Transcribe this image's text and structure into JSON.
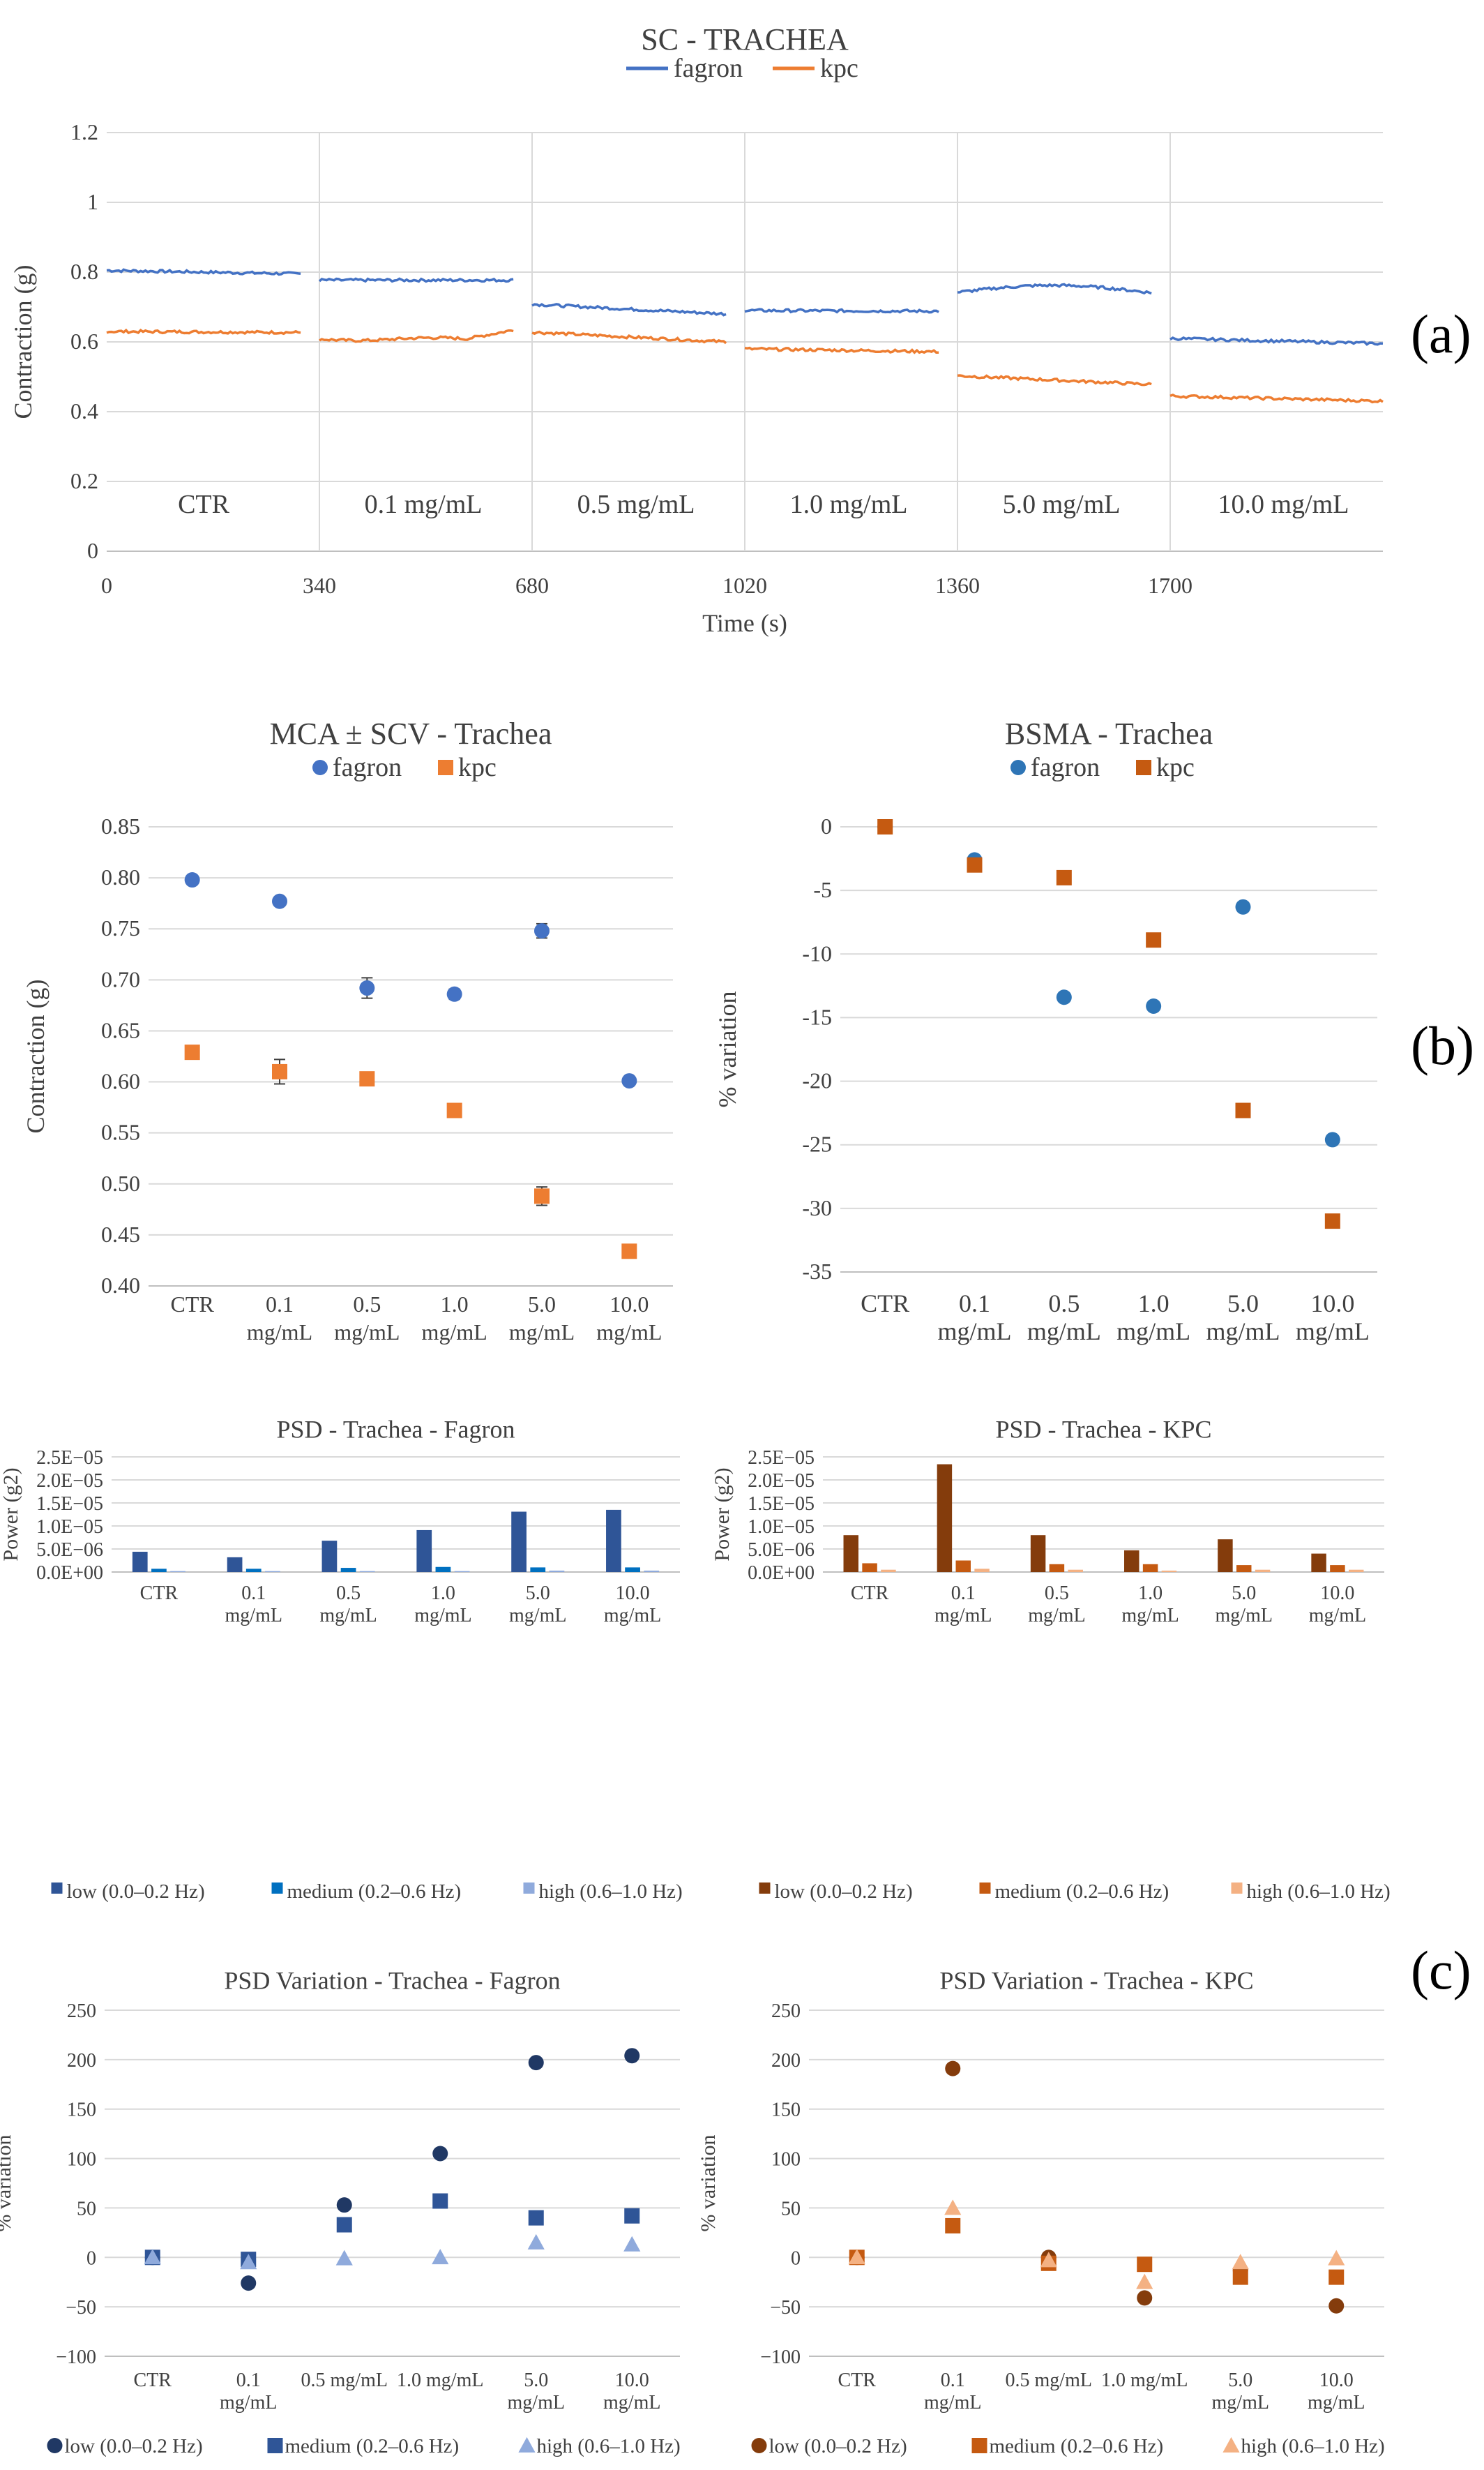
{
  "panel_labels": [
    "(a)",
    "(b)",
    "(c)"
  ],
  "chart_data": [
    {
      "id": "sc",
      "type": "line",
      "title": "SC - TRACHEA",
      "xlabel": "Time (s)",
      "ylabel": "Contraction (g)",
      "xlim": [
        0,
        2040
      ],
      "ylim": [
        0,
        1.2
      ],
      "yticks": [
        "0",
        "0.2",
        "0.4",
        "0.6",
        "0.8",
        "1",
        "1.2"
      ],
      "xticks": [
        "0",
        "340",
        "680",
        "1020",
        "1360",
        "1700"
      ],
      "legend_position": "top",
      "segments": [
        {
          "label": "CTR",
          "start": 0,
          "end": 310,
          "fagron": [
            0.805,
            0.795
          ],
          "kpc": [
            0.63,
            0.627
          ]
        },
        {
          "label": "0.1 mg/mL",
          "start": 340,
          "end": 650,
          "fagron": [
            0.777,
            0.777
          ],
          "kpc": [
            0.608,
            0.634
          ]
        },
        {
          "label": "0.5 mg/mL",
          "start": 680,
          "end": 990,
          "fagron": [
            0.708,
            0.68
          ],
          "kpc": [
            0.628,
            0.6
          ]
        },
        {
          "label": "1.0 mg/mL",
          "start": 1020,
          "end": 1330,
          "fagron": [
            0.69,
            0.688
          ],
          "kpc": [
            0.58,
            0.572
          ]
        },
        {
          "label": "5.0 mg/mL",
          "start": 1360,
          "end": 1670,
          "fagron": [
            0.74,
            0.755
          ],
          "kpc": [
            0.503,
            0.478
          ]
        },
        {
          "label": "10.0 mg/mL",
          "start": 1700,
          "end": 2040,
          "fagron": [
            0.61,
            0.595
          ],
          "kpc": [
            0.445,
            0.43
          ]
        }
      ],
      "series": [
        {
          "name": "fagron",
          "color": "#4472c4"
        },
        {
          "name": "kpc",
          "color": "#ed7d31"
        }
      ]
    },
    {
      "id": "mca",
      "type": "scatter",
      "title": "MCA ± SCV - Trachea",
      "ylabel": "Contraction (g)",
      "ylim": [
        0.4,
        0.85
      ],
      "yticks": [
        "0.40",
        "0.45",
        "0.50",
        "0.55",
        "0.60",
        "0.65",
        "0.70",
        "0.75",
        "0.80",
        "0.85"
      ],
      "categories": [
        [
          "CTR"
        ],
        [
          "0.1",
          "mg/mL"
        ],
        [
          "0.5",
          "mg/mL"
        ],
        [
          "1.0",
          "mg/mL"
        ],
        [
          "5.0",
          "mg/mL"
        ],
        [
          "10.0",
          "mg/mL"
        ]
      ],
      "legend_position": "top",
      "series": [
        {
          "name": "fagron",
          "color": "#4472c4",
          "marker": "circle",
          "values": [
            0.798,
            0.777,
            0.692,
            0.686,
            0.748,
            0.601
          ],
          "errors": [
            0.0,
            0.0,
            0.01,
            0.005,
            0.007,
            0.0
          ]
        },
        {
          "name": "kpc",
          "color": "#ed7d31",
          "marker": "square",
          "values": [
            0.629,
            0.61,
            0.603,
            0.572,
            0.488,
            0.434
          ],
          "errors": [
            0.0,
            0.012,
            0.0,
            0.0,
            0.009,
            0.0
          ]
        }
      ]
    },
    {
      "id": "bsma",
      "type": "scatter",
      "title": "BSMA - Trachea",
      "ylabel": "% variation",
      "ylim": [
        -35,
        0
      ],
      "yticks": [
        "0",
        "-5",
        "-10",
        "-15",
        "-20",
        "-25",
        "-30",
        "-35"
      ],
      "categories": [
        [
          "CTR"
        ],
        [
          "0.1",
          "mg/mL"
        ],
        [
          "0.5",
          "mg/mL"
        ],
        [
          "1.0",
          "mg/mL"
        ],
        [
          "5.0",
          "mg/mL"
        ],
        [
          "10.0",
          "mg/mL"
        ]
      ],
      "legend_position": "top",
      "series": [
        {
          "name": "fagron",
          "color": "#2e75b6",
          "marker": "circle",
          "values": [
            0,
            -2.6,
            -13.4,
            -14.1,
            -6.3,
            -24.6
          ]
        },
        {
          "name": "kpc",
          "color": "#c55a11",
          "marker": "square",
          "values": [
            0,
            -3.0,
            -4.0,
            -8.9,
            -22.3,
            -31.0
          ]
        }
      ]
    },
    {
      "id": "psdf",
      "type": "bar",
      "title": "PSD - Trachea - Fagron",
      "ylabel": "Power (g2)",
      "ylim": [
        0,
        2.5e-05
      ],
      "yticks": [
        "0.0E+00",
        "5.0E−06",
        "1.0E−05",
        "1.5E−05",
        "2.0E−05",
        "2.5E−05"
      ],
      "categories": [
        [
          "CTR"
        ],
        [
          "0.1",
          "mg/mL"
        ],
        [
          "0.5",
          "mg/mL"
        ],
        [
          "1.0",
          "mg/mL"
        ],
        [
          "5.0",
          "mg/mL"
        ],
        [
          "10.0",
          "mg/mL"
        ]
      ],
      "legend_position": "bottom",
      "series": [
        {
          "name": "low (0.0–0.2 Hz)",
          "color": "#2f5597",
          "values": [
            4.4e-06,
            3.2e-06,
            6.8e-06,
            9.1e-06,
            1.31e-05,
            1.35e-05
          ]
        },
        {
          "name": "medium (0.2–0.6 Hz)",
          "color": "#0070c0",
          "values": [
            7e-07,
            7e-07,
            9e-07,
            1.1e-06,
            1e-06,
            1e-06
          ]
        },
        {
          "name": "high (0.6–1.0 Hz)",
          "color": "#8faadc",
          "values": [
            2e-07,
            2e-07,
            2e-07,
            2e-07,
            3e-07,
            3e-07
          ]
        }
      ]
    },
    {
      "id": "psdk",
      "type": "bar",
      "title": "PSD - Trachea - KPC",
      "ylabel": "Power (g2)",
      "ylim": [
        0,
        2.5e-05
      ],
      "yticks": [
        "0.0E+00",
        "5.0E−06",
        "1.0E−05",
        "1.5E−05",
        "2.0E−05",
        "2.5E−05"
      ],
      "categories": [
        [
          "CTR"
        ],
        [
          "0.1",
          "mg/mL"
        ],
        [
          "0.5",
          "mg/mL"
        ],
        [
          "1.0",
          "mg/mL"
        ],
        [
          "5.0",
          "mg/mL"
        ],
        [
          "10.0",
          "mg/mL"
        ]
      ],
      "legend_position": "bottom",
      "series": [
        {
          "name": "low (0.0–0.2 Hz)",
          "color": "#843c0c",
          "values": [
            8e-06,
            2.34e-05,
            8e-06,
            4.7e-06,
            7.1e-06,
            4e-06
          ]
        },
        {
          "name": "medium (0.2–0.6 Hz)",
          "color": "#c55a11",
          "values": [
            1.9e-06,
            2.5e-06,
            1.7e-06,
            1.7e-06,
            1.5e-06,
            1.5e-06
          ]
        },
        {
          "name": "high (0.6–1.0 Hz)",
          "color": "#f4b183",
          "values": [
            5e-07,
            7e-07,
            5e-07,
            3e-07,
            5e-07,
            5e-07
          ]
        }
      ]
    },
    {
      "id": "varf",
      "type": "scatter",
      "title": "PSD Variation - Trachea - Fagron",
      "ylabel": "% variation",
      "ylim": [
        -100,
        250
      ],
      "yticks": [
        "250",
        "200",
        "150",
        "100",
        "50",
        "0",
        "−50",
        "−100"
      ],
      "categories": [
        [
          "CTR"
        ],
        [
          "0.1",
          "mg/mL"
        ],
        [
          "0.5 mg/mL"
        ],
        [
          "1.0 mg/mL"
        ],
        [
          "5.0",
          "mg/mL"
        ],
        [
          "10.0",
          "mg/mL"
        ]
      ],
      "legend_position": "bottom",
      "series": [
        {
          "name": "low (0.0–0.2 Hz)",
          "color": "#203864",
          "marker": "circle",
          "values": [
            0,
            -26,
            53,
            105,
            197,
            204
          ]
        },
        {
          "name": "medium (0.2–0.6 Hz)",
          "color": "#2f5597",
          "marker": "square",
          "values": [
            0,
            -2,
            33,
            57,
            40,
            42
          ]
        },
        {
          "name": "high (0.6–1.0 Hz)",
          "color": "#8faadc",
          "marker": "triangle",
          "values": [
            0,
            -5,
            -1,
            0,
            15,
            13
          ]
        }
      ]
    },
    {
      "id": "vark",
      "type": "scatter",
      "title": "PSD Variation - Trachea - KPC",
      "ylabel": "% variation",
      "ylim": [
        -100,
        250
      ],
      "yticks": [
        "250",
        "200",
        "150",
        "100",
        "50",
        "0",
        "−50",
        "−100"
      ],
      "categories": [
        [
          "CTR"
        ],
        [
          "0.1",
          "mg/mL"
        ],
        [
          "0.5 mg/mL"
        ],
        [
          "1.0 mg/mL"
        ],
        [
          "5.0",
          "mg/mL"
        ],
        [
          "10.0",
          "mg/mL"
        ]
      ],
      "legend_position": "bottom",
      "series": [
        {
          "name": "low (0.0–0.2 Hz)",
          "color": "#843c0c",
          "marker": "circle",
          "values": [
            0,
            191,
            0,
            -41,
            -13,
            -49
          ]
        },
        {
          "name": "medium (0.2–0.6 Hz)",
          "color": "#c55a11",
          "marker": "square",
          "values": [
            0,
            32,
            -6,
            -7,
            -20,
            -20
          ]
        },
        {
          "name": "high (0.6–1.0 Hz)",
          "color": "#f4b183",
          "marker": "triangle",
          "values": [
            0,
            50,
            -3,
            -25,
            -5,
            -1
          ]
        }
      ]
    }
  ]
}
